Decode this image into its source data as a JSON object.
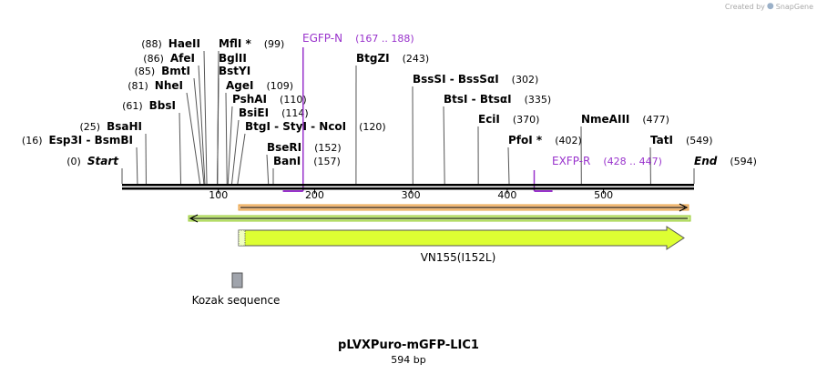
{
  "brand": {
    "created_by": "Created by",
    "app_name": "SnapGene"
  },
  "title": "pLVXPuro-mGFP-LIC1",
  "size_label": "594 bp",
  "map": {
    "length": 594,
    "ticks": [
      "100",
      "200",
      "300",
      "400",
      "500"
    ],
    "tick_values": [
      100,
      200,
      300,
      400,
      500
    ]
  },
  "sites": [
    {
      "id": "start",
      "pos": 0,
      "pos_label": "(0)",
      "name": "Start",
      "italic": true,
      "pos_after": false
    },
    {
      "id": "esp3i",
      "pos": 16,
      "pos_label": "(16)",
      "name": "Esp3I  -  BsmBI",
      "pos_after": false
    },
    {
      "id": "bsahi",
      "pos": 25,
      "pos_label": "(25)",
      "name": "BsaHI",
      "pos_after": false
    },
    {
      "id": "bbsi",
      "pos": 61,
      "pos_label": "(61)",
      "name": "BbsI",
      "pos_after": false
    },
    {
      "id": "nhei",
      "pos": 81,
      "pos_label": "(81)",
      "name": "NheI",
      "pos_after": false
    },
    {
      "id": "bmti",
      "pos": 85,
      "pos_label": "(85)",
      "name": "BmtI",
      "pos_after": false
    },
    {
      "id": "afei",
      "pos": 86,
      "pos_label": "(86)",
      "name": "AfeI",
      "pos_after": false
    },
    {
      "id": "haeii",
      "pos": 88,
      "pos_label": "(88)",
      "name": "HaeII",
      "pos_after": false
    },
    {
      "id": "mfli",
      "pos": 99,
      "pos_label": "(99)",
      "name": "MflI *",
      "pos_after": true
    },
    {
      "id": "bglii",
      "pos": 99,
      "pos_label": "",
      "name": "BglII",
      "pos_after": true
    },
    {
      "id": "bstyi",
      "pos": 99,
      "pos_label": "",
      "name": "BstYI",
      "pos_after": true
    },
    {
      "id": "agei",
      "pos": 109,
      "pos_label": "(109)",
      "name": "AgeI",
      "pos_after": true
    },
    {
      "id": "pshai",
      "pos": 110,
      "pos_label": "(110)",
      "name": "PshAI",
      "pos_after": true
    },
    {
      "id": "bsiei",
      "pos": 114,
      "pos_label": "(114)",
      "name": "BsiEI",
      "pos_after": true
    },
    {
      "id": "btgi",
      "pos": 120,
      "pos_label": "(120)",
      "name": "BtgI  -  StyI  -  NcoI",
      "pos_after": true
    },
    {
      "id": "bseri",
      "pos": 152,
      "pos_label": "(152)",
      "name": "BseRI",
      "pos_after": true
    },
    {
      "id": "bani",
      "pos": 157,
      "pos_label": "(157)",
      "name": "BanI",
      "pos_after": true
    },
    {
      "id": "btgzi",
      "pos": 243,
      "pos_label": "(243)",
      "name": "BtgZI",
      "pos_after": true
    },
    {
      "id": "bsssi",
      "pos": 302,
      "pos_label": "(302)",
      "name": "BssSI  -  BssSαI",
      "pos_after": true
    },
    {
      "id": "btsi",
      "pos": 335,
      "pos_label": "(335)",
      "name": "BtsI  -  BtsαI",
      "pos_after": true
    },
    {
      "id": "ecii",
      "pos": 370,
      "pos_label": "(370)",
      "name": "EciI",
      "pos_after": true
    },
    {
      "id": "pfoi",
      "pos": 402,
      "pos_label": "(402)",
      "name": "PfoI *",
      "pos_after": true
    },
    {
      "id": "nmeaiii",
      "pos": 477,
      "pos_label": "(477)",
      "name": "NmeAIII",
      "pos_after": true
    },
    {
      "id": "tati",
      "pos": 549,
      "pos_label": "(549)",
      "name": "TatI",
      "pos_after": true
    },
    {
      "id": "end",
      "pos": 594,
      "pos_label": "(594)",
      "name": "End",
      "italic": true,
      "pos_after": true
    }
  ],
  "primers": [
    {
      "id": "egfp-n",
      "name": "EGFP-N",
      "range_label": "(167 .. 188)",
      "start": 167,
      "end": 188,
      "color": "#9933cc"
    },
    {
      "id": "exfp-r",
      "name": "EXFP-R",
      "range_label": "(428 .. 447)",
      "start": 428,
      "end": 447,
      "color": "#9933cc"
    }
  ],
  "features": [
    {
      "id": "orf-forward",
      "type": "orf",
      "start": 120,
      "end": 594,
      "direction": "forward",
      "color": "#e8a040"
    },
    {
      "id": "orf-reverse",
      "type": "orf",
      "start": 70,
      "end": 594,
      "direction": "reverse",
      "color": "#99cc33"
    },
    {
      "id": "vn155",
      "type": "cds",
      "label": "VN155(I152L)",
      "start": 120,
      "end": 580,
      "direction": "forward",
      "color": "#ddff33"
    },
    {
      "id": "kozak",
      "type": "misc",
      "label": "Kozak sequence",
      "start": 114,
      "end": 124,
      "color": "#a0a4ac"
    }
  ]
}
